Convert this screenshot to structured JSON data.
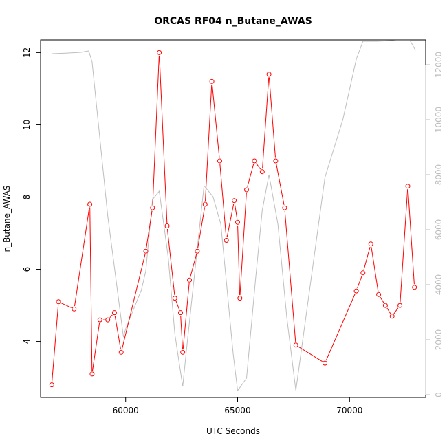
{
  "chart_data": {
    "type": "line",
    "title": "ORCAS RF04 n_Butane_AWAS",
    "xlabel": "UTC Seconds",
    "ylabel": "n_Butane_AWAS",
    "xlim": [
      56200,
      73400
    ],
    "ylim": [
      2.45,
      12.35
    ],
    "y2lim": [
      -100,
      12900
    ],
    "x_ticks": [
      60000,
      65000,
      70000
    ],
    "y_ticks": [
      4,
      6,
      8,
      10,
      12
    ],
    "y2_ticks": [
      0,
      2000,
      4000,
      6000,
      8000,
      10000,
      12000
    ],
    "grid": false,
    "legend": "none",
    "colors": {
      "primary": "#ff0000",
      "secondary": "#bebebe",
      "marker_fill": "#ffffff",
      "axis": "#000000"
    },
    "series": [
      {
        "axis": "left",
        "style": "line+circles",
        "points": [
          [
            56700,
            2.8
          ],
          [
            57000,
            5.1
          ],
          [
            57700,
            4.9
          ],
          [
            58400,
            7.8
          ],
          [
            58500,
            3.1
          ],
          [
            58850,
            4.6
          ],
          [
            59200,
            4.6
          ],
          [
            59500,
            4.8
          ],
          [
            59800,
            3.7
          ],
          [
            60900,
            6.5
          ],
          [
            61200,
            7.7
          ],
          [
            61500,
            12.0
          ],
          [
            61850,
            7.2
          ],
          [
            62200,
            5.2
          ],
          [
            62450,
            4.8
          ],
          [
            62550,
            3.7
          ],
          [
            62850,
            5.7
          ],
          [
            63200,
            6.5
          ],
          [
            63550,
            7.8
          ],
          [
            63850,
            11.2
          ],
          [
            64200,
            9.0
          ],
          [
            64500,
            6.8
          ],
          [
            64850,
            7.9
          ],
          [
            65000,
            7.3
          ],
          [
            65100,
            5.2
          ],
          [
            65400,
            8.2
          ],
          [
            65750,
            9.0
          ],
          [
            66100,
            8.7
          ],
          [
            66400,
            11.4
          ],
          [
            66700,
            9.0
          ],
          [
            67100,
            7.7
          ],
          [
            67600,
            3.9
          ],
          [
            68900,
            3.4
          ],
          [
            70300,
            5.4
          ],
          [
            70600,
            5.9
          ],
          [
            70950,
            6.7
          ],
          [
            71300,
            5.3
          ],
          [
            71600,
            5.0
          ],
          [
            71900,
            4.7
          ],
          [
            72250,
            5.0
          ],
          [
            72600,
            8.3
          ],
          [
            72900,
            5.5
          ]
        ]
      },
      {
        "axis": "right",
        "style": "line",
        "points": [
          [
            56700,
            12400
          ],
          [
            57300,
            12420
          ],
          [
            58000,
            12450
          ],
          [
            58350,
            12500
          ],
          [
            58500,
            12100
          ],
          [
            58700,
            10500
          ],
          [
            59200,
            6500
          ],
          [
            59900,
            2100
          ],
          [
            60000,
            2400
          ],
          [
            60700,
            3800
          ],
          [
            60900,
            4500
          ],
          [
            61200,
            7100
          ],
          [
            61500,
            7400
          ],
          [
            61900,
            5000
          ],
          [
            62200,
            2200
          ],
          [
            62550,
            300
          ],
          [
            62700,
            1500
          ],
          [
            63000,
            3800
          ],
          [
            63500,
            7600
          ],
          [
            63900,
            7200
          ],
          [
            64250,
            6200
          ],
          [
            64500,
            4100
          ],
          [
            64800,
            1500
          ],
          [
            65000,
            150
          ],
          [
            65400,
            600
          ],
          [
            65800,
            4200
          ],
          [
            66100,
            6700
          ],
          [
            66400,
            8000
          ],
          [
            66800,
            6200
          ],
          [
            67200,
            2800
          ],
          [
            67600,
            150
          ],
          [
            68900,
            7900
          ],
          [
            69700,
            10000
          ],
          [
            70300,
            12200
          ],
          [
            70600,
            12850
          ],
          [
            71200,
            12850
          ],
          [
            72100,
            12880
          ],
          [
            72700,
            12880
          ],
          [
            72950,
            12520
          ]
        ]
      }
    ]
  }
}
